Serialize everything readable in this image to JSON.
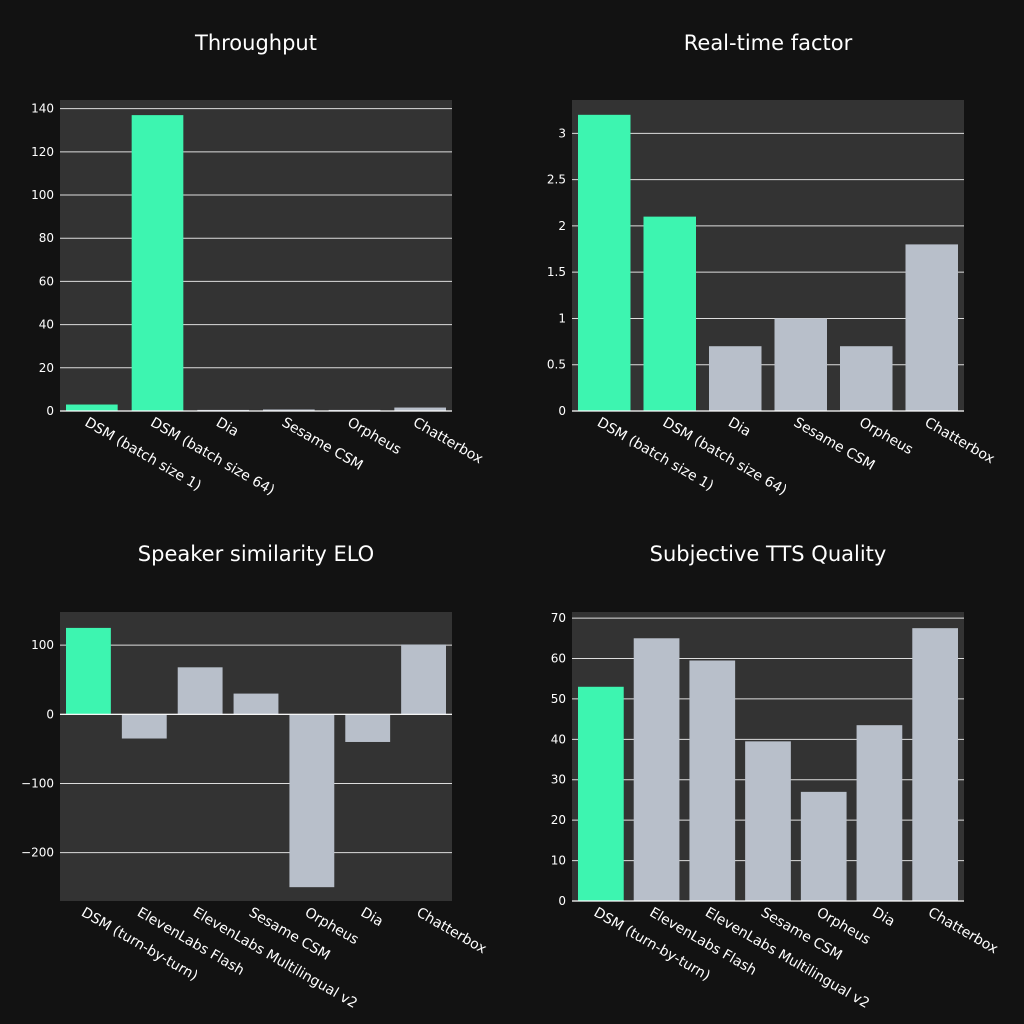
{
  "colors": {
    "background": "#121212",
    "plot_bg": "#333333",
    "grid": "#dddddd",
    "highlight": "#3df5b0",
    "default": "#b8bfca",
    "text": "#ffffff"
  },
  "chart_data": [
    {
      "type": "bar",
      "title": "Throughput",
      "categories": [
        "DSM (batch size 1)",
        "DSM (batch size 64)",
        "Dia",
        "Sesame CSM",
        "Orpheus",
        "Chatterbox"
      ],
      "values": [
        3,
        137,
        0.5,
        0.7,
        0.5,
        1.6
      ],
      "highlight": [
        true,
        true,
        false,
        false,
        false,
        false
      ],
      "ylim": [
        0,
        144
      ],
      "yticks": [
        0,
        20,
        40,
        60,
        80,
        100,
        120,
        140
      ],
      "ytick_labels": [
        "0",
        "20",
        "40",
        "60",
        "80",
        "100",
        "120",
        "140"
      ],
      "xlabel": "",
      "ylabel": "",
      "grid": true
    },
    {
      "type": "bar",
      "title": "Real-time factor",
      "categories": [
        "DSM (batch size 1)",
        "DSM (batch size 64)",
        "Dia",
        "Sesame CSM",
        "Orpheus",
        "Chatterbox"
      ],
      "values": [
        3.2,
        2.1,
        0.7,
        1.0,
        0.7,
        1.8
      ],
      "highlight": [
        true,
        true,
        false,
        false,
        false,
        false
      ],
      "ylim": [
        0,
        3.36
      ],
      "yticks": [
        0,
        0.5,
        1,
        1.5,
        2,
        2.5,
        3
      ],
      "ytick_labels": [
        "0",
        "0.5",
        "1",
        "1.5",
        "2",
        "2.5",
        "3"
      ],
      "xlabel": "",
      "ylabel": "",
      "grid": true
    },
    {
      "type": "bar",
      "title": "Speaker similarity ELO",
      "categories": [
        "DSM (turn-by-turn)",
        "ElevenLabs Flash",
        "ElevenLabs Multilingual v2",
        "Sesame CSM",
        "Orpheus",
        "Dia",
        "Chatterbox"
      ],
      "values": [
        125,
        -35,
        68,
        30,
        -250,
        -40,
        101
      ],
      "highlight": [
        true,
        false,
        false,
        false,
        false,
        false,
        false
      ],
      "ylim": [
        -270,
        148
      ],
      "yticks": [
        -200,
        -100,
        0,
        100
      ],
      "ytick_labels": [
        "−200",
        "−100",
        "0",
        "100"
      ],
      "xlabel": "",
      "ylabel": "",
      "grid": true
    },
    {
      "type": "bar",
      "title": "Subjective TTS Quality",
      "categories": [
        "DSM (turn-by-turn)",
        "ElevenLabs Flash",
        "ElevenLabs Multilingual v2",
        "Sesame CSM",
        "Orpheus",
        "Dia",
        "Chatterbox"
      ],
      "values": [
        53,
        65,
        59.5,
        39.5,
        27,
        43.5,
        67.5
      ],
      "highlight": [
        true,
        false,
        false,
        false,
        false,
        false,
        false
      ],
      "ylim": [
        0,
        71.5
      ],
      "yticks": [
        0,
        10,
        20,
        30,
        40,
        50,
        60,
        70
      ],
      "ytick_labels": [
        "0",
        "10",
        "20",
        "30",
        "40",
        "50",
        "60",
        "70"
      ],
      "xlabel": "",
      "ylabel": "",
      "grid": true
    }
  ]
}
